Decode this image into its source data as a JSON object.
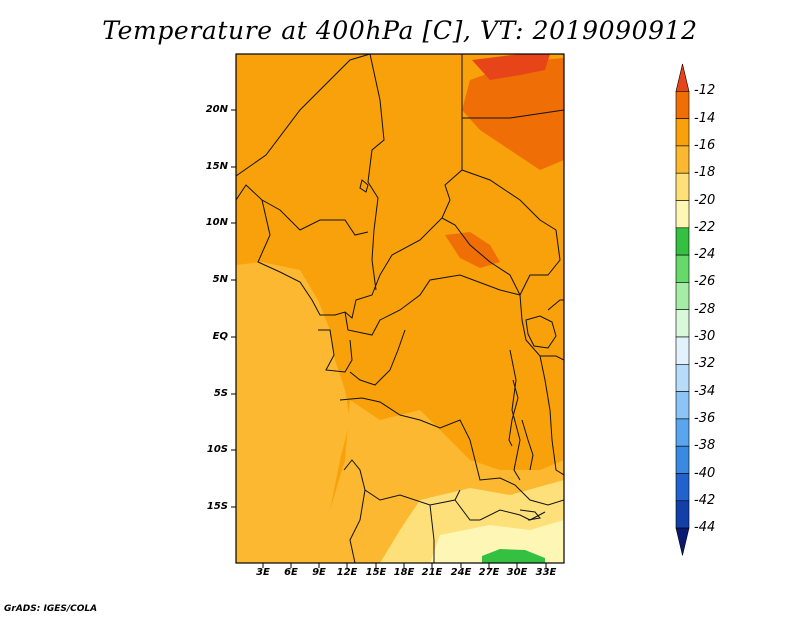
{
  "title": "Temperature at 400hPa [C], VT: 2019090912",
  "credit": "GrADS: IGES/COLA",
  "map": {
    "lat_labels": [
      "20N",
      "15N",
      "10N",
      "5N",
      "EQ",
      "5S",
      "10S",
      "15S"
    ],
    "lon_labels": [
      "3E",
      "6E",
      "9E",
      "12E",
      "15E",
      "18E",
      "21E",
      "24E",
      "27E",
      "30E",
      "33E"
    ]
  },
  "colorbar": {
    "labels": [
      "-12",
      "-14",
      "-16",
      "-18",
      "-20",
      "-22",
      "-24",
      "-26",
      "-28",
      "-30",
      "-32",
      "-34",
      "-36",
      "-38",
      "-40",
      "-42",
      "-44"
    ],
    "colors": [
      "#e8441a",
      "#f06e06",
      "#f8a10a",
      "#fbb830",
      "#fde07a",
      "#fef6b5",
      "#34c040",
      "#66d96a",
      "#a6eba6",
      "#d9f7d9",
      "#e2f2fc",
      "#b6dcfa",
      "#8cc4f5",
      "#5aa6ee",
      "#3a8ae2",
      "#2262cc",
      "#1240a8",
      "#0a1a70"
    ]
  }
}
